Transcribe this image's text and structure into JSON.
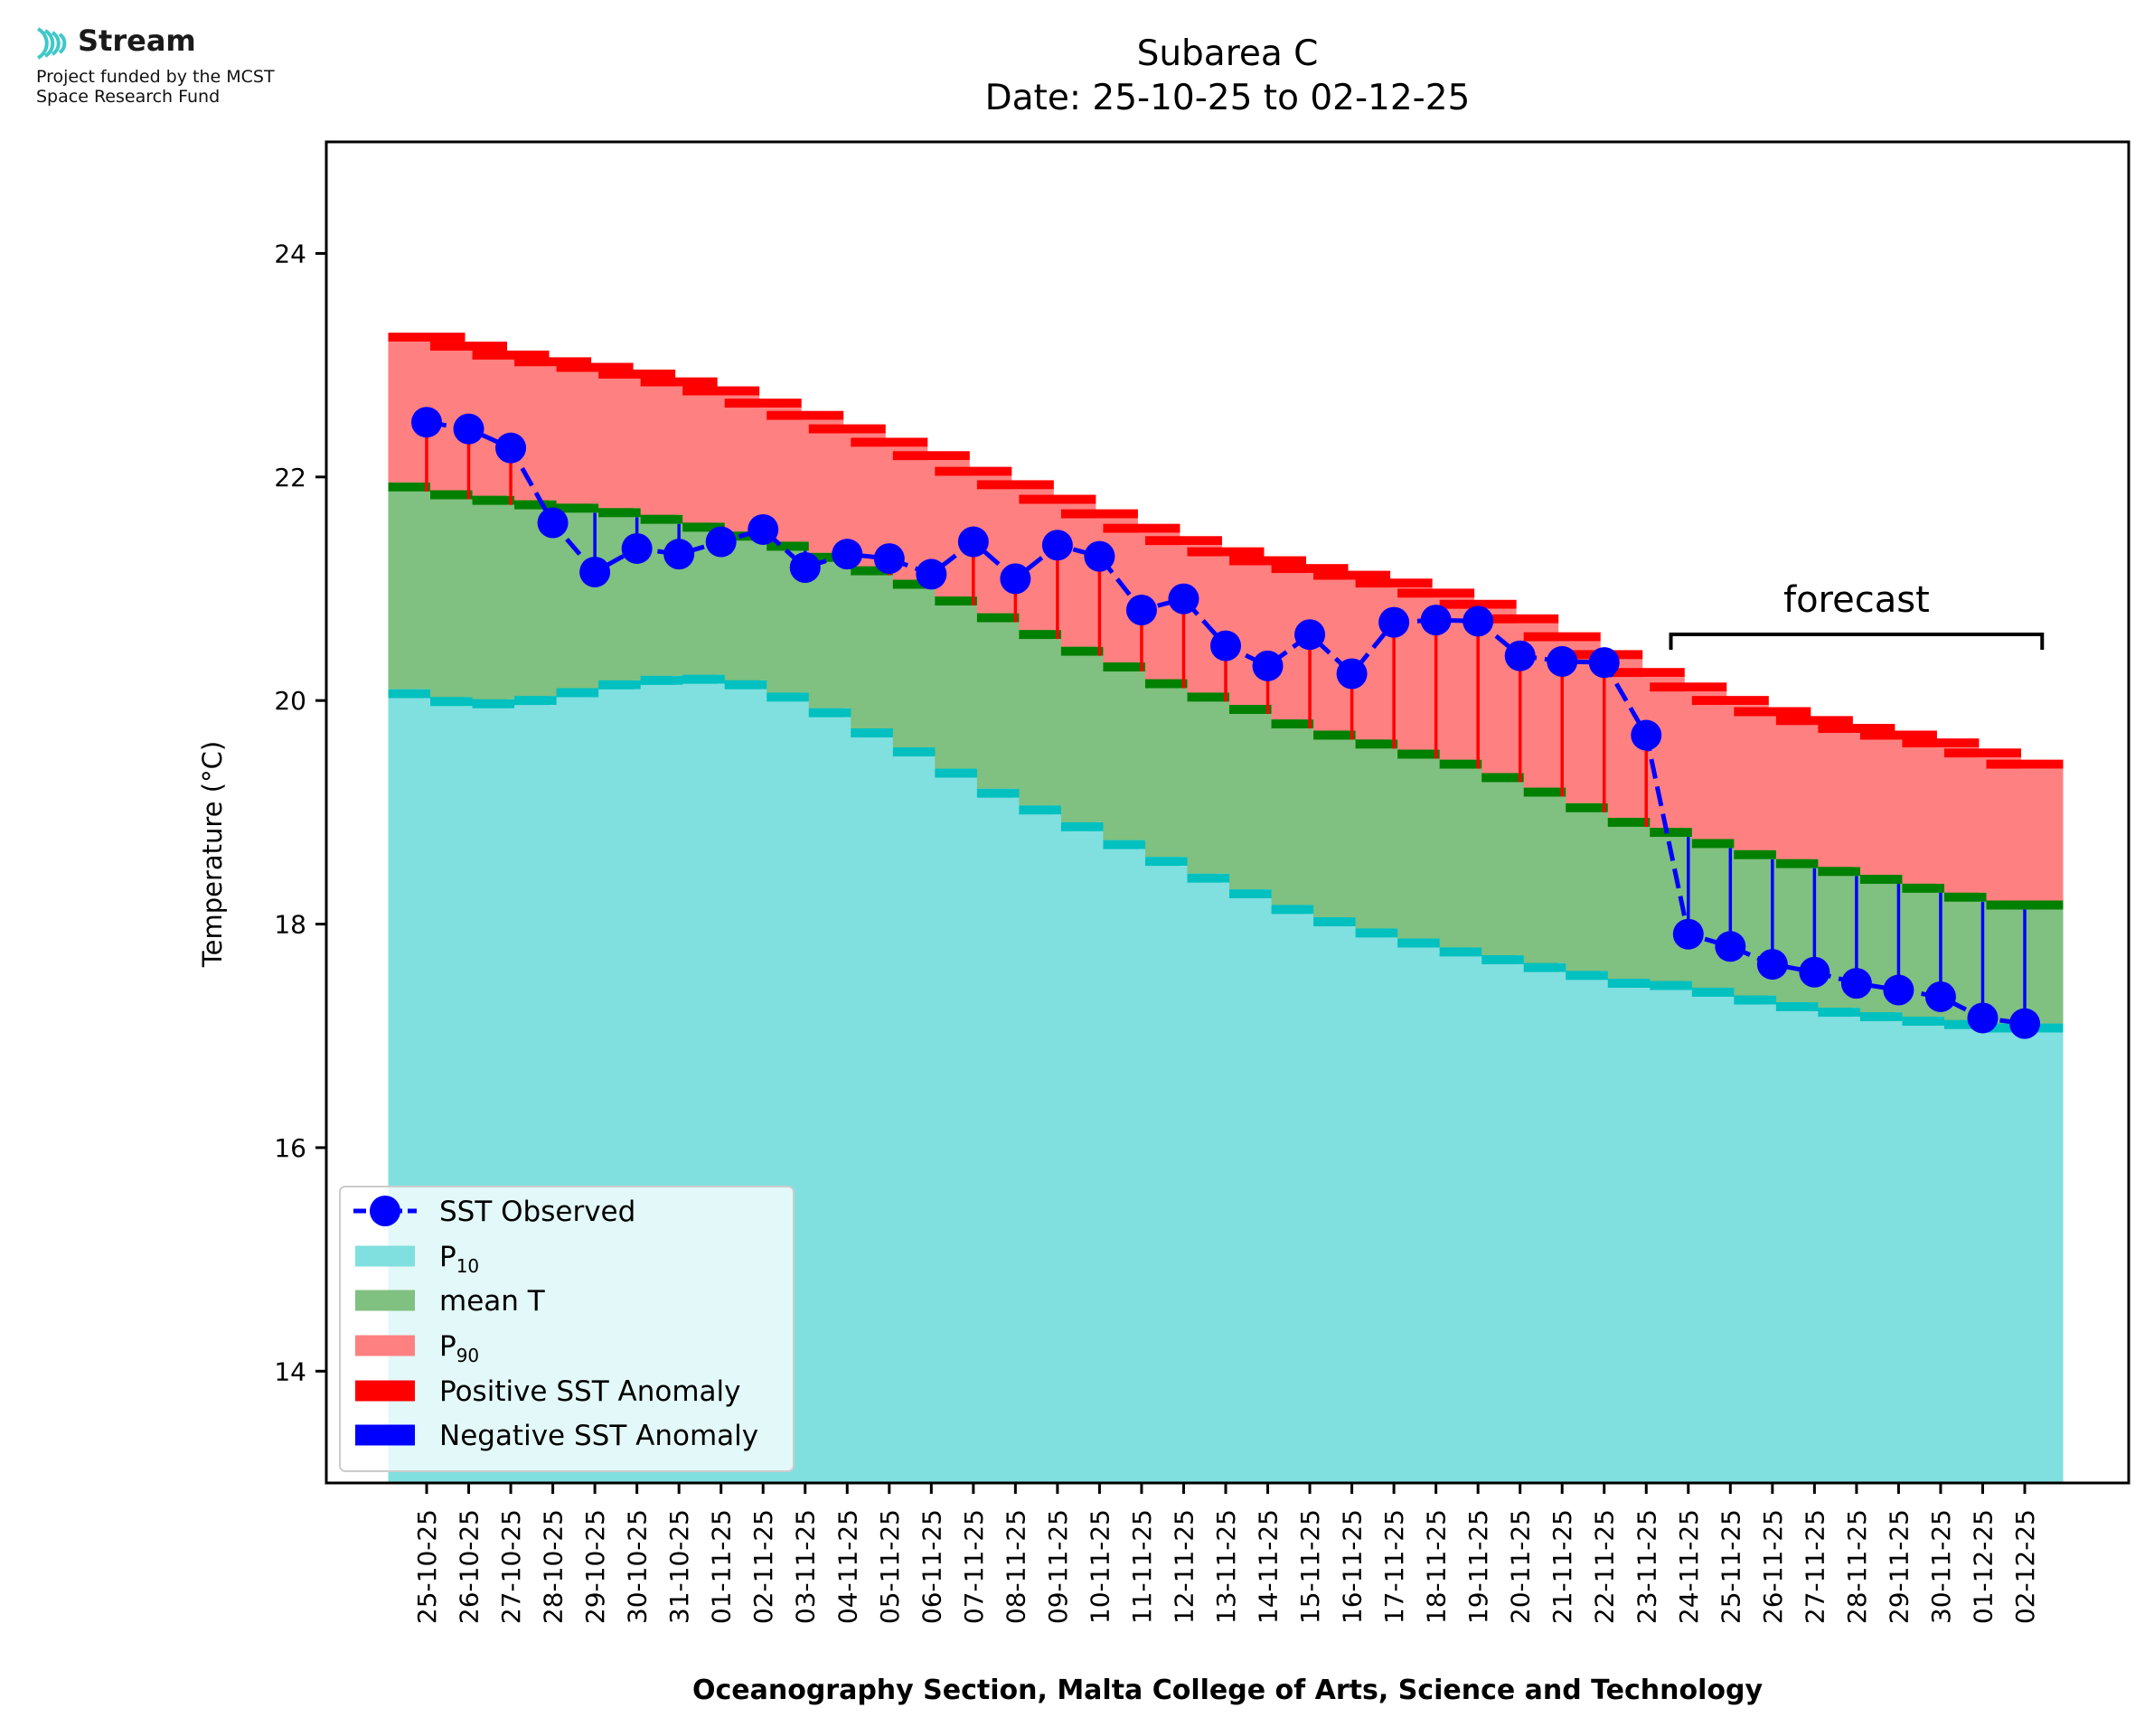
{
  "logo": {
    "icon": "stream-waves-icon",
    "brand": "Stream",
    "funding_line_1": "Project funded by the MCST",
    "funding_line_2": "Space Research Fund"
  },
  "chart_data": {
    "type": "bar",
    "title": "Subarea C",
    "subtitle": "Date: 25-10-25 to 02-12-25",
    "xlabel": "Oceanography Section, Malta College of Arts, Science and Technology",
    "ylabel": "Temperature (°C)",
    "ylim": [
      13.0,
      24.998
    ],
    "yticks": [
      14,
      16,
      18,
      20,
      22,
      24
    ],
    "grid": false,
    "legend_position": "lower-left",
    "annotation": {
      "text": "forecast",
      "from": "24-11-25",
      "to": "02-12-25"
    },
    "categories": [
      "25-10-25",
      "26-10-25",
      "27-10-25",
      "28-10-25",
      "29-10-25",
      "30-10-25",
      "31-10-25",
      "01-11-25",
      "02-11-25",
      "03-11-25",
      "04-11-25",
      "05-11-25",
      "06-11-25",
      "07-11-25",
      "08-11-25",
      "09-11-25",
      "10-11-25",
      "11-11-25",
      "12-11-25",
      "13-11-25",
      "14-11-25",
      "15-11-25",
      "16-11-25",
      "17-11-25",
      "18-11-25",
      "19-11-25",
      "20-11-25",
      "21-11-25",
      "22-11-25",
      "23-11-25",
      "24-11-25",
      "25-11-25",
      "26-11-25",
      "27-11-25",
      "28-11-25",
      "29-11-25",
      "30-11-25",
      "01-12-25",
      "02-12-25"
    ],
    "series": [
      {
        "name": "SST Observed",
        "color": "#0000ff",
        "values": [
          22.49,
          22.43,
          22.26,
          21.59,
          21.15,
          21.36,
          21.31,
          21.42,
          21.53,
          21.19,
          21.31,
          21.27,
          21.13,
          21.42,
          21.09,
          21.39,
          21.29,
          20.81,
          20.91,
          20.49,
          20.31,
          20.59,
          20.24,
          20.7,
          20.72,
          20.71,
          20.4,
          20.35,
          20.34,
          19.69,
          17.91,
          17.8,
          17.64,
          17.57,
          17.47,
          17.41,
          17.35,
          17.16,
          17.11
        ]
      },
      {
        "name": "P10",
        "color": "#80dfdf",
        "edge_color": "#00c0c0",
        "values": [
          20.02,
          19.95,
          19.93,
          19.96,
          20.03,
          20.1,
          20.14,
          20.15,
          20.1,
          19.99,
          19.85,
          19.67,
          19.5,
          19.31,
          19.13,
          18.98,
          18.83,
          18.67,
          18.52,
          18.37,
          18.23,
          18.09,
          17.98,
          17.88,
          17.79,
          17.71,
          17.64,
          17.57,
          17.5,
          17.43,
          17.41,
          17.35,
          17.28,
          17.22,
          17.17,
          17.13,
          17.09,
          17.06,
          17.03
        ]
      },
      {
        "name": "mean T",
        "color": "#80c080",
        "edge_color": "#008000",
        "values": [
          21.87,
          21.8,
          21.75,
          21.71,
          21.68,
          21.64,
          21.58,
          21.51,
          21.43,
          21.34,
          21.24,
          21.12,
          21.0,
          20.85,
          20.7,
          20.55,
          20.4,
          20.26,
          20.11,
          19.99,
          19.88,
          19.75,
          19.65,
          19.57,
          19.48,
          19.39,
          19.27,
          19.14,
          19.0,
          18.87,
          18.78,
          18.68,
          18.58,
          18.5,
          18.43,
          18.36,
          18.28,
          18.2,
          18.13
        ]
      },
      {
        "name": "P90",
        "color": "#ff8080",
        "edge_color": "#ff0000",
        "values": [
          23.21,
          23.13,
          23.05,
          22.99,
          22.94,
          22.88,
          22.81,
          22.73,
          22.62,
          22.51,
          22.39,
          22.27,
          22.15,
          22.01,
          21.89,
          21.76,
          21.63,
          21.5,
          21.39,
          21.29,
          21.21,
          21.14,
          21.08,
          21.01,
          20.92,
          20.82,
          20.69,
          20.53,
          20.37,
          20.21,
          20.08,
          19.96,
          19.86,
          19.78,
          19.71,
          19.65,
          19.58,
          19.49,
          19.39
        ]
      }
    ],
    "legend": {
      "sst": "SST Observed",
      "p10_base": "P",
      "p10_sub": "10",
      "mean": "mean T",
      "p90_base": "P",
      "p90_sub": "90",
      "pos_anom": "Positive SST Anomaly",
      "neg_anom": "Negative SST Anomaly",
      "pos_color": "#ff0000",
      "neg_color": "#0000ff"
    }
  }
}
